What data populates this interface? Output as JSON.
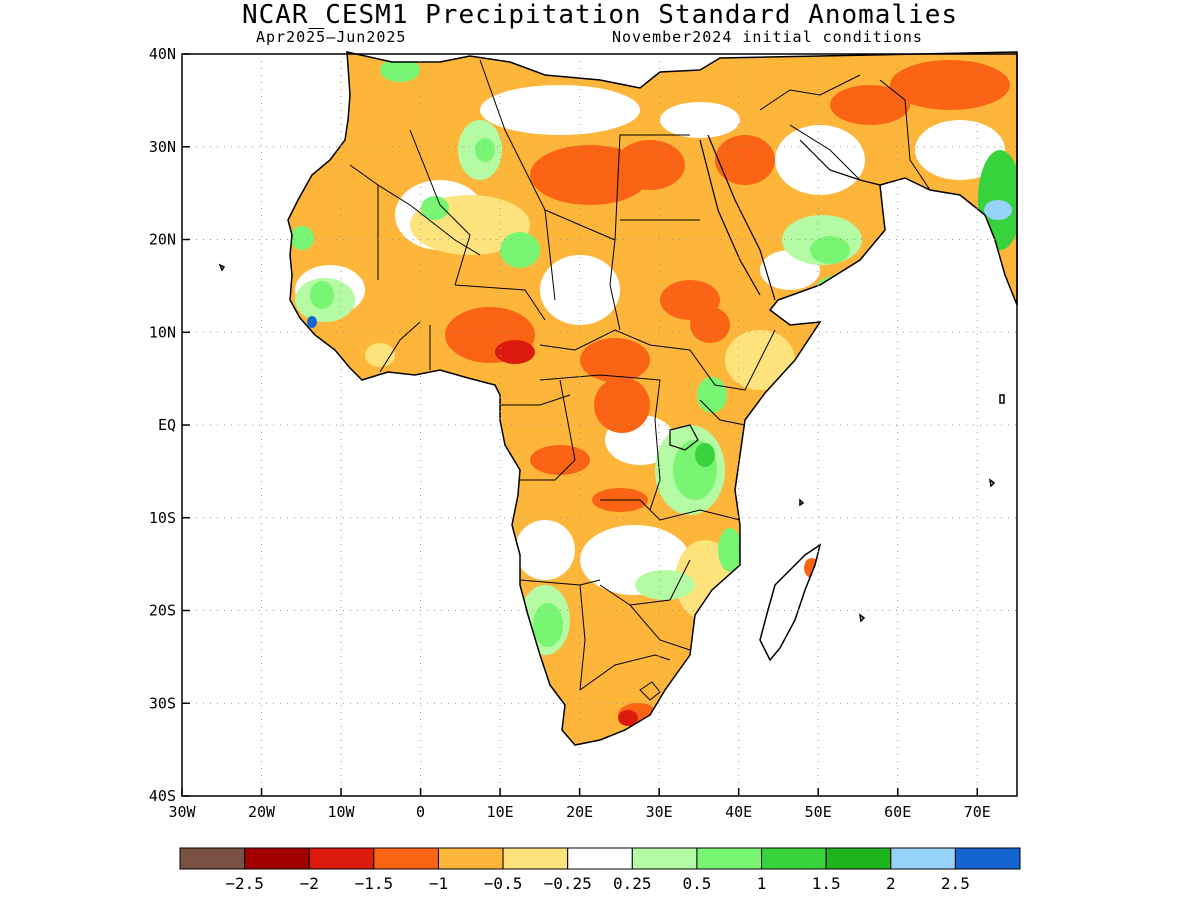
{
  "title": "NCAR_CESM1 Precipitation Standard Anomalies",
  "subtitle_left": "Apr2025–Jun2025",
  "subtitle_right": "November2024 initial conditions",
  "map": {
    "region": "Africa",
    "lon_range": [
      -30,
      75
    ],
    "lat_range": [
      -40,
      40
    ],
    "x_ticks": [
      "30W",
      "20W",
      "10W",
      "0",
      "10E",
      "20E",
      "30E",
      "40E",
      "50E",
      "60E",
      "70E"
    ],
    "y_ticks": [
      "40N",
      "30N",
      "20N",
      "10N",
      "EQ",
      "10S",
      "20S",
      "30S",
      "40S"
    ],
    "grid": "dotted"
  },
  "colorbar": {
    "colors": [
      "#7a5244",
      "#a30000",
      "#dd1a0e",
      "#fa6414",
      "#fdb639",
      "#fee37c",
      "#ffffff",
      "#b4fba4",
      "#78f573",
      "#37d23c",
      "#1eb41e",
      "#96d2fa",
      "#1464d2"
    ],
    "labels": [
      "-2.5",
      "-2",
      "-1.5",
      "-1",
      "-0.5",
      "-0.25",
      "0.25",
      "0.5",
      "1",
      "1.5",
      "2",
      "2.5"
    ],
    "label_display": [
      "−2.5",
      "−2",
      "−1.5",
      "−1",
      "−0.5",
      "−0.25",
      "0.25",
      "0.5",
      "1",
      "1.5",
      "2",
      "2.5"
    ]
  }
}
